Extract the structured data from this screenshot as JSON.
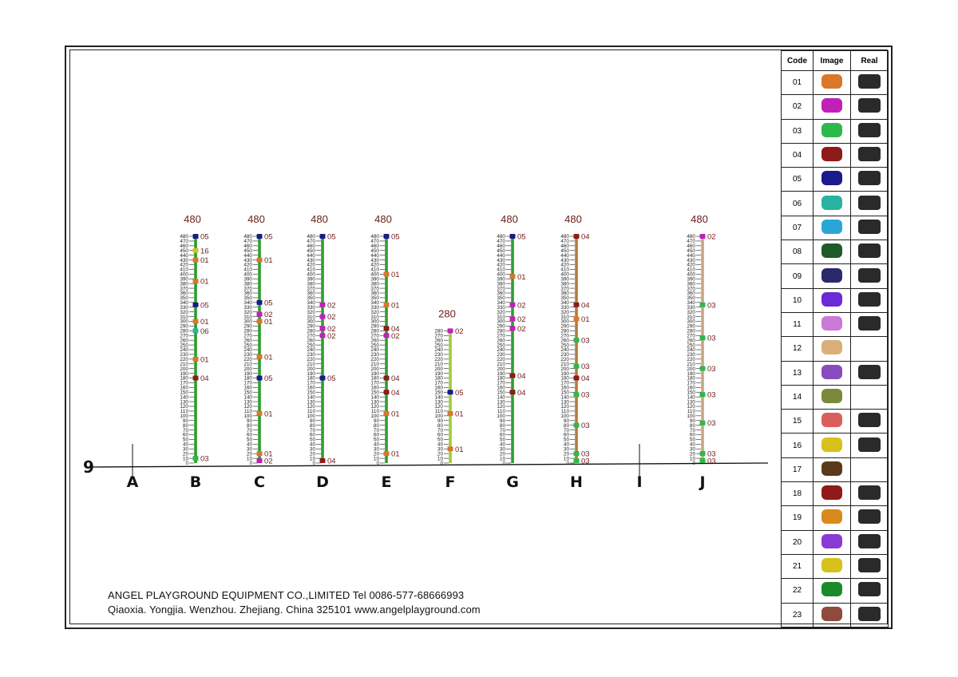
{
  "footer": {
    "line1": "ANGEL PLAYGROUND EQUIPMENT CO.,LIMITED  Tel 0086-577-68666993",
    "line2": "Qiaoxia. Yongjia. Wenzhou. Zhejiang. China  325101  www.angelplayground.com"
  },
  "grid": {
    "row_label": "9"
  },
  "colors": {
    "pole_green": "#2e9d2e",
    "pole_lime": "#9ccc3c",
    "pole_brown": "#b57a3a",
    "pole_tan": "#c9a586",
    "marker_brown": "#6b1a1a",
    "label": "#6b1a1a"
  },
  "connector_colors": {
    "01": "#d9782b",
    "02": "#c020b8",
    "03": "#2eb84a",
    "04": "#8e1a1a",
    "05": "#1a1a8a",
    "06": "#2ab3a0",
    "07": "#2aa6d6",
    "08": "#1f5a2a",
    "09": "#2a2a6a",
    "10": "#6a2ad6",
    "11": "#c87ad6",
    "12": "#d9b07a",
    "13": "#8a4ac0",
    "14": "#7a8a3a",
    "15": "#d9605a",
    "16": "#d6c21a",
    "17": "#5a3a1a",
    "18": "#8e1a1a",
    "19": "#d98a1a",
    "20": "#8a3ad6",
    "21": "#d6c21a",
    "22": "#1a8a2a",
    "23": "#8e4a3a"
  },
  "columns": [
    {
      "letter": "A",
      "height_label": "",
      "max": 0,
      "has_pole": false,
      "color": ""
    },
    {
      "letter": "B",
      "height_label": "480",
      "max": 480,
      "has_pole": true,
      "color": "pole_green",
      "markers": [
        {
          "v": 480,
          "code": "05"
        },
        {
          "v": 450,
          "code": "16"
        },
        {
          "v": 430,
          "code": "01"
        },
        {
          "v": 385,
          "code": "01"
        },
        {
          "v": 335,
          "code": "05"
        },
        {
          "v": 300,
          "code": "01"
        },
        {
          "v": 280,
          "code": "06"
        },
        {
          "v": 220,
          "code": "01"
        },
        {
          "v": 180,
          "code": "04"
        },
        {
          "v": 10,
          "code": "03"
        }
      ]
    },
    {
      "letter": "C",
      "height_label": "480",
      "max": 480,
      "has_pole": true,
      "color": "pole_green",
      "markers": [
        {
          "v": 480,
          "code": "05"
        },
        {
          "v": 430,
          "code": "01"
        },
        {
          "v": 340,
          "code": "05"
        },
        {
          "v": 315,
          "code": "02"
        },
        {
          "v": 300,
          "code": "01"
        },
        {
          "v": 225,
          "code": "01"
        },
        {
          "v": 180,
          "code": "05"
        },
        {
          "v": 105,
          "code": "01"
        },
        {
          "v": 20,
          "code": "01"
        },
        {
          "v": 5,
          "code": "02"
        }
      ]
    },
    {
      "letter": "D",
      "height_label": "480",
      "max": 480,
      "has_pole": true,
      "color": "pole_green",
      "markers": [
        {
          "v": 480,
          "code": "05"
        },
        {
          "v": 335,
          "code": "02"
        },
        {
          "v": 310,
          "code": "02"
        },
        {
          "v": 285,
          "code": "02"
        },
        {
          "v": 270,
          "code": "02"
        },
        {
          "v": 180,
          "code": "05"
        },
        {
          "v": 5,
          "code": "04"
        }
      ]
    },
    {
      "letter": "E",
      "height_label": "480",
      "max": 480,
      "has_pole": true,
      "color": "pole_green",
      "markers": [
        {
          "v": 480,
          "code": "05"
        },
        {
          "v": 400,
          "code": "01"
        },
        {
          "v": 335,
          "code": "01"
        },
        {
          "v": 285,
          "code": "04"
        },
        {
          "v": 270,
          "code": "02"
        },
        {
          "v": 180,
          "code": "04"
        },
        {
          "v": 150,
          "code": "04"
        },
        {
          "v": 105,
          "code": "01"
        },
        {
          "v": 20,
          "code": "01"
        }
      ]
    },
    {
      "letter": "F",
      "height_label": "280",
      "max": 280,
      "has_pole": true,
      "color": "pole_lime",
      "markers": [
        {
          "v": 280,
          "code": "02"
        },
        {
          "v": 150,
          "code": "05"
        },
        {
          "v": 105,
          "code": "01"
        },
        {
          "v": 30,
          "code": "01"
        }
      ]
    },
    {
      "letter": "G",
      "height_label": "480",
      "max": 480,
      "has_pole": true,
      "color": "pole_green",
      "markers": [
        {
          "v": 480,
          "code": "05"
        },
        {
          "v": 395,
          "code": "01"
        },
        {
          "v": 335,
          "code": "02"
        },
        {
          "v": 305,
          "code": "02"
        },
        {
          "v": 285,
          "code": "02"
        },
        {
          "v": 185,
          "code": "04"
        },
        {
          "v": 150,
          "code": "04"
        }
      ]
    },
    {
      "letter": "H",
      "height_label": "480",
      "max": 480,
      "has_pole": true,
      "color": "pole_brown",
      "markers": [
        {
          "v": 480,
          "code": "04"
        },
        {
          "v": 335,
          "code": "04"
        },
        {
          "v": 305,
          "code": "01"
        },
        {
          "v": 260,
          "code": "03"
        },
        {
          "v": 205,
          "code": "03"
        },
        {
          "v": 180,
          "code": "04"
        },
        {
          "v": 145,
          "code": "03"
        },
        {
          "v": 80,
          "code": "03"
        },
        {
          "v": 20,
          "code": "03"
        },
        {
          "v": 5,
          "code": "03"
        }
      ]
    },
    {
      "letter": "I",
      "height_label": "",
      "max": 0,
      "has_pole": false,
      "color": ""
    },
    {
      "letter": "J",
      "height_label": "480",
      "max": 480,
      "has_pole": true,
      "color": "pole_tan",
      "markers": [
        {
          "v": 480,
          "code": "02"
        },
        {
          "v": 335,
          "code": "03"
        },
        {
          "v": 265,
          "code": "03"
        },
        {
          "v": 200,
          "code": "03"
        },
        {
          "v": 145,
          "code": "03"
        },
        {
          "v": 85,
          "code": "03"
        },
        {
          "v": 20,
          "code": "03"
        },
        {
          "v": 5,
          "code": "03"
        }
      ]
    }
  ],
  "legend": {
    "headers": {
      "code": "Code",
      "image": "Image",
      "real": "Real"
    },
    "rows": [
      {
        "code": "01",
        "real": true
      },
      {
        "code": "02",
        "real": true
      },
      {
        "code": "03",
        "real": true
      },
      {
        "code": "04",
        "real": true
      },
      {
        "code": "05",
        "real": true
      },
      {
        "code": "06",
        "real": true
      },
      {
        "code": "07",
        "real": true
      },
      {
        "code": "08",
        "real": true
      },
      {
        "code": "09",
        "real": true
      },
      {
        "code": "10",
        "real": true
      },
      {
        "code": "11",
        "real": true
      },
      {
        "code": "12",
        "real": false
      },
      {
        "code": "13",
        "real": true
      },
      {
        "code": "14",
        "real": false
      },
      {
        "code": "15",
        "real": true
      },
      {
        "code": "16",
        "real": true
      },
      {
        "code": "17",
        "real": false
      },
      {
        "code": "18",
        "real": true
      },
      {
        "code": "19",
        "real": true
      },
      {
        "code": "20",
        "real": true
      },
      {
        "code": "21",
        "real": true
      },
      {
        "code": "22",
        "real": true
      },
      {
        "code": "23",
        "real": true
      }
    ]
  }
}
